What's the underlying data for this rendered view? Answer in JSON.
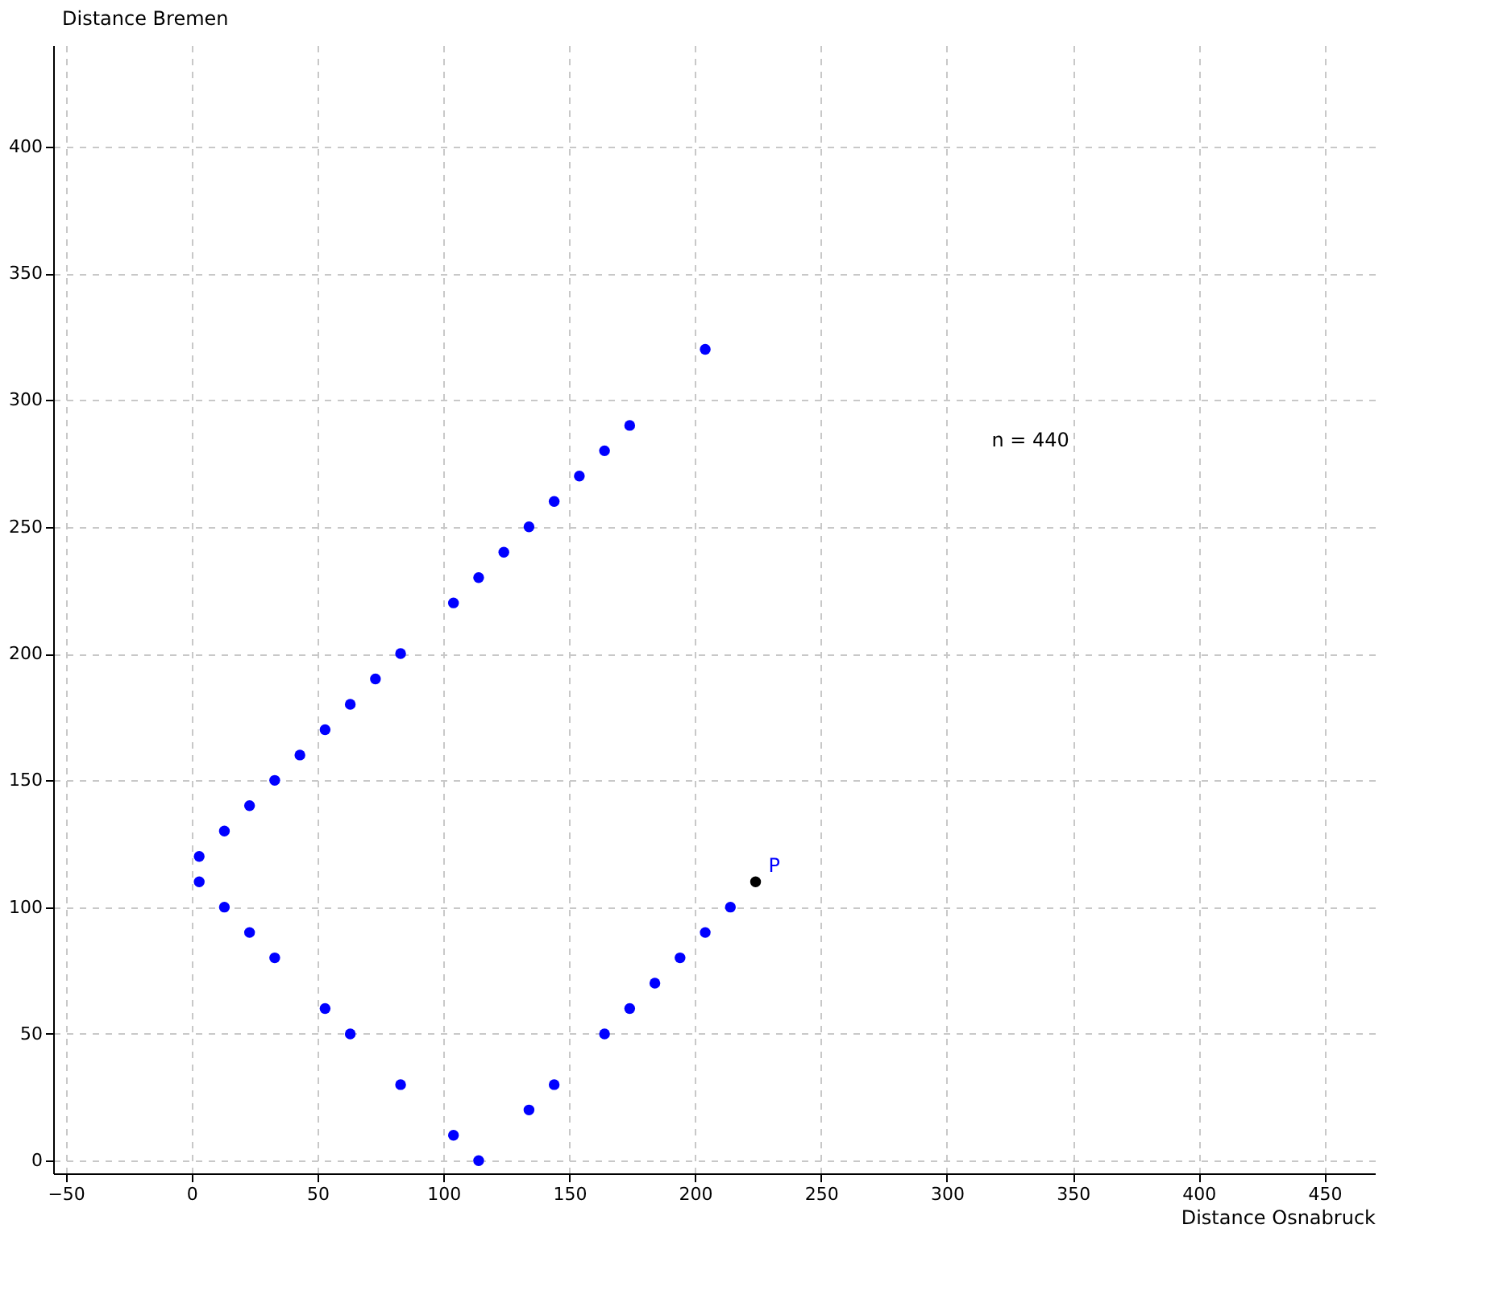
{
  "chart_data": {
    "type": "scatter",
    "xlabel": "Distance Osnabruck",
    "ylabel": "Distance Bremen",
    "x": [
      3,
      3,
      13,
      23,
      33,
      43,
      53,
      63,
      73,
      83,
      104,
      114,
      124,
      134,
      144,
      154,
      164,
      174,
      204,
      13,
      23,
      33,
      53,
      63,
      83,
      104,
      114,
      134,
      144,
      164,
      174,
      184,
      194,
      204,
      214
    ],
    "series": [
      {
        "color": "#0000ff",
        "values": [
          120,
          110,
          130,
          140,
          150,
          160,
          170,
          180,
          190,
          200,
          220,
          230,
          240,
          250,
          260,
          270,
          280,
          290,
          320,
          100,
          90,
          80,
          60,
          50,
          30,
          10,
          0,
          20,
          30,
          50,
          60,
          70,
          80,
          90,
          100
        ]
      },
      {
        "name": "P",
        "color": "#000000",
        "x": [
          224
        ],
        "values": [
          110
        ]
      }
    ],
    "xlim": [
      -55,
      470
    ],
    "ylim": [
      -5,
      440
    ],
    "xticks": [
      -50,
      0,
      50,
      100,
      150,
      200,
      250,
      300,
      350,
      400,
      450
    ],
    "yticks": [
      0,
      50,
      100,
      150,
      200,
      250,
      300,
      350,
      400
    ],
    "grid": true,
    "marker": "circle",
    "annotations": [
      "n = 440"
    ]
  }
}
